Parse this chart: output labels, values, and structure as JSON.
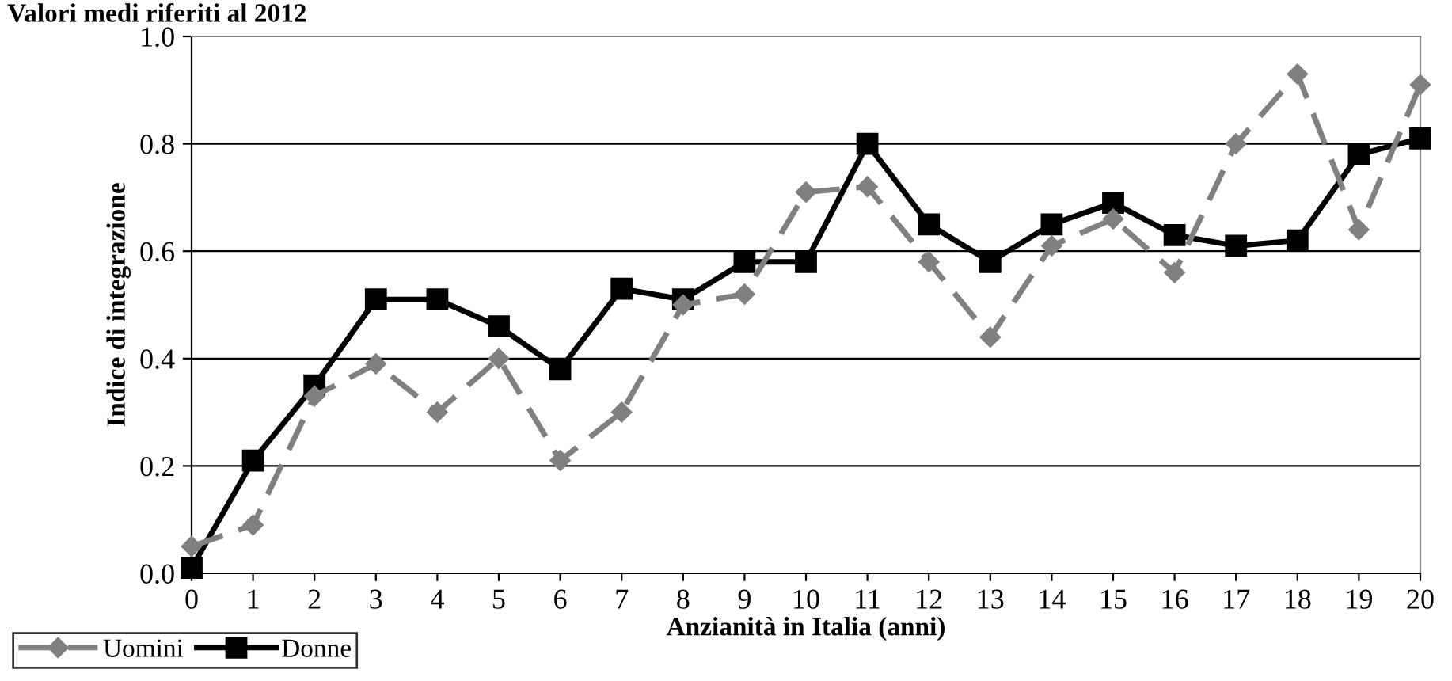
{
  "chart_data": {
    "type": "line",
    "title": "Valori medi riferiti al 2012",
    "xlabel": "Anzianità in Italia (anni)",
    "ylabel": "Indice di integrazione",
    "x": [
      0,
      1,
      2,
      3,
      4,
      5,
      6,
      7,
      8,
      9,
      10,
      11,
      12,
      13,
      14,
      15,
      16,
      17,
      18,
      19,
      20
    ],
    "series": [
      {
        "name": "Uomini",
        "color": "#808080",
        "marker": "diamond",
        "line_style": "dashed",
        "values": [
          0.05,
          0.09,
          0.33,
          0.39,
          0.3,
          0.4,
          0.21,
          0.3,
          0.5,
          0.52,
          0.71,
          0.72,
          0.58,
          0.44,
          0.61,
          0.66,
          0.56,
          0.8,
          0.93,
          0.64,
          0.91
        ]
      },
      {
        "name": "Donne",
        "color": "#000000",
        "marker": "square",
        "line_style": "solid",
        "values": [
          0.01,
          0.21,
          0.35,
          0.51,
          0.51,
          0.46,
          0.38,
          0.53,
          0.51,
          0.58,
          0.58,
          0.8,
          0.65,
          0.58,
          0.65,
          0.69,
          0.63,
          0.61,
          0.62,
          0.78,
          0.81
        ]
      }
    ],
    "xlim": [
      0,
      20
    ],
    "xticks": [
      0,
      1,
      2,
      3,
      4,
      5,
      6,
      7,
      8,
      9,
      10,
      11,
      12,
      13,
      14,
      15,
      16,
      17,
      18,
      19,
      20
    ],
    "ylim": [
      0,
      1
    ],
    "yticks": [
      {
        "value": 0,
        "label": "0.0"
      },
      {
        "value": 0.2,
        "label": "0.2"
      },
      {
        "value": 0.4,
        "label": "0.4"
      },
      {
        "value": 0.6,
        "label": "0.6"
      },
      {
        "value": 0.8,
        "label": "0.8"
      },
      {
        "value": 1,
        "label": "1.0"
      }
    ],
    "grid": "y",
    "legend": "bottom left"
  }
}
